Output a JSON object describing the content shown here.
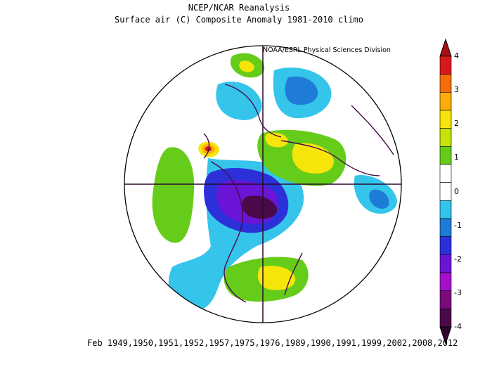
{
  "title": "NCEP/NCAR Reanalysis",
  "subtitle": "Surface air (C) Composite Anomaly 1981-2010 climo",
  "credit": "NOAA/ESRL Physical Sciences Division",
  "footer": "Feb 1949,1950,1951,1952,1957,1975,1976,1989,1990,1991,1999,2002,2008,2012",
  "colorbar": {
    "labels": [
      "4",
      "3",
      "2",
      "1",
      "0",
      "-1",
      "-2",
      "-3",
      "-4"
    ],
    "colors": [
      "#d7191c",
      "#f46d0b",
      "#fdae0d",
      "#f5e50a",
      "#c6e30a",
      "#66cc1a",
      "#ffffff",
      "#ffffff",
      "#35c4ea",
      "#1e7bd6",
      "#2b30d9",
      "#6a14d6",
      "#a310c8",
      "#7b0a7a",
      "#4a0a4a"
    ]
  },
  "colors": {
    "ocean_anomaly_green": "#66cc1a",
    "light_blue": "#35c4ea",
    "blue": "#1e7bd6",
    "indigo": "#2b30d9",
    "purple": "#6a14d6",
    "dark_purple": "#4a0a4a",
    "yellow": "#f5e50a",
    "orange": "#fdae0d",
    "red": "#d7191c",
    "coastline": "#4a0a4a"
  }
}
